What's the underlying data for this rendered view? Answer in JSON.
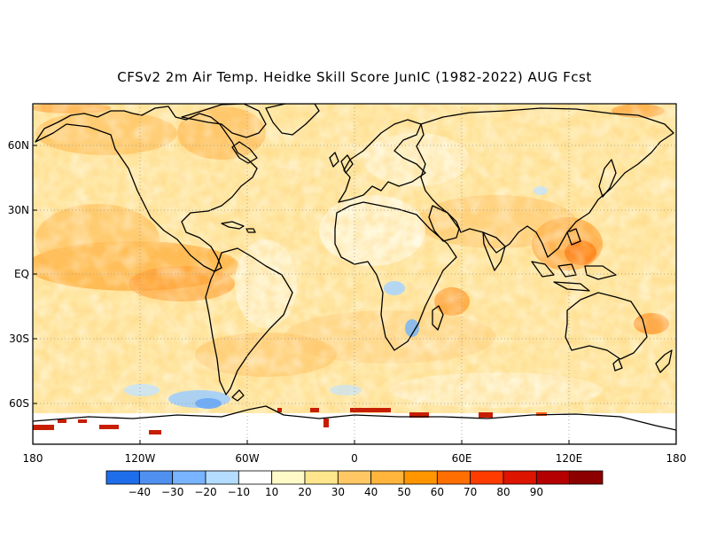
{
  "title": "CFSv2 2m Air Temp. Heidke Skill Score JunIC (1982-2022) AUG Fcst",
  "map": {
    "projection": "cylindrical equidistant",
    "lon_range": [
      -180,
      180
    ],
    "lat_range": [
      -78,
      80
    ],
    "lat_labels": [
      "60N",
      "30N",
      "EQ",
      "30S",
      "60S"
    ],
    "lon_labels": [
      "180",
      "120W",
      "60W",
      "0",
      "60E",
      "120E",
      "180"
    ]
  },
  "colorbar": {
    "labels": [
      "-40",
      "-30",
      "-20",
      "-10",
      "10",
      "20",
      "30",
      "40",
      "50",
      "60",
      "70",
      "80",
      "90"
    ],
    "colors": [
      "#1e6eeb",
      "#5091f0",
      "#78b4ff",
      "#b4dcff",
      "#ffffff",
      "#fffac8",
      "#ffe68c",
      "#ffc864",
      "#ffb43c",
      "#ff9600",
      "#ff6e00",
      "#ff3c00",
      "#dc1400",
      "#b40000",
      "#8c0000"
    ]
  }
}
